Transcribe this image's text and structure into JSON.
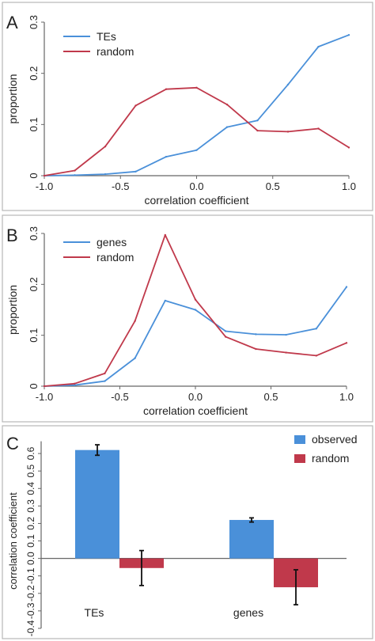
{
  "colors": {
    "blue": "#4a90d9",
    "red": "#c0394b",
    "axis": "#666666",
    "frame": "#b8b8b8"
  },
  "chart_data": [
    {
      "panel": "A",
      "type": "line",
      "xlabel": "correlation coefficient",
      "ylabel": "proportion",
      "xlim": [
        -1.0,
        1.0
      ],
      "ylim": [
        0,
        0.3
      ],
      "x_ticks": [
        "-1.0",
        "-0.5",
        "0.0",
        "0.5",
        "1.0"
      ],
      "y_ticks": [
        "0",
        "0.1",
        "0.2",
        "0.3"
      ],
      "legend_position": "top-left",
      "x": [
        -1.0,
        -0.8,
        -0.6,
        -0.4,
        -0.2,
        0.0,
        0.2,
        0.4,
        0.6,
        0.8,
        1.0
      ],
      "series": [
        {
          "name": "TEs",
          "color": "#4a90d9",
          "values": [
            0.0,
            0.001,
            0.003,
            0.008,
            0.037,
            0.05,
            0.095,
            0.108,
            0.178,
            0.252,
            0.275
          ]
        },
        {
          "name": "random",
          "color": "#c0394b",
          "values": [
            0.0,
            0.01,
            0.057,
            0.137,
            0.169,
            0.172,
            0.139,
            0.088,
            0.086,
            0.092,
            0.055
          ]
        }
      ]
    },
    {
      "panel": "B",
      "type": "line",
      "xlabel": "correlation coefficient",
      "ylabel": "proportion",
      "xlim": [
        -1.0,
        1.0
      ],
      "ylim": [
        0,
        0.3
      ],
      "x_ticks": [
        "-1.0",
        "-0.5",
        "0.0",
        "0.5",
        "1.0"
      ],
      "y_ticks": [
        "0",
        "0.1",
        "0.2",
        "0.3"
      ],
      "legend_position": "top-left",
      "x": [
        -1.0,
        -0.8,
        -0.6,
        -0.4,
        -0.2,
        0.0,
        0.2,
        0.4,
        0.6,
        0.8,
        1.0
      ],
      "series": [
        {
          "name": "genes",
          "color": "#4a90d9",
          "values": [
            0.0,
            0.002,
            0.01,
            0.055,
            0.168,
            0.15,
            0.108,
            0.102,
            0.101,
            0.113,
            0.195
          ]
        },
        {
          "name": "random",
          "color": "#c0394b",
          "values": [
            0.0,
            0.005,
            0.025,
            0.128,
            0.297,
            0.17,
            0.097,
            0.073,
            0.066,
            0.06,
            0.085
          ]
        }
      ]
    },
    {
      "panel": "C",
      "type": "bar",
      "xlabel": "",
      "ylabel": "correlation coefficient",
      "ylim": [
        -0.4,
        0.7
      ],
      "y_ticks": [
        "-0.4",
        "-0.3",
        "-0.2",
        "-0.1",
        "0.0",
        "0.1",
        "0.2",
        "0.3",
        "0.4",
        "0.5",
        "0.6"
      ],
      "categories": [
        "TEs",
        "genes"
      ],
      "legend_position": "top-right",
      "series": [
        {
          "name": "observed",
          "color": "#4a90d9",
          "values": [
            0.62,
            0.22
          ],
          "errors": [
            0.03,
            0.012
          ]
        },
        {
          "name": "random",
          "color": "#c0394b",
          "values": [
            -0.055,
            -0.165
          ],
          "errors": [
            0.1,
            0.1
          ]
        }
      ]
    }
  ]
}
